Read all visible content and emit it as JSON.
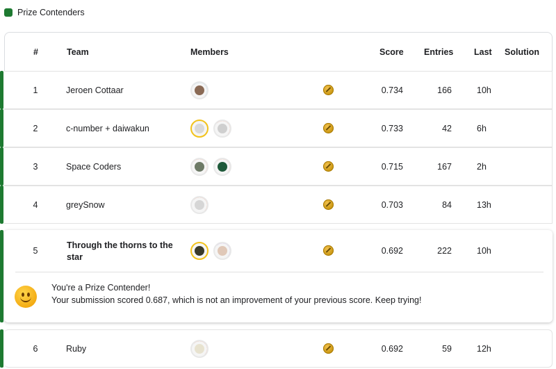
{
  "legend": {
    "label": "Prize Contenders",
    "color": "#1e7a31"
  },
  "headers": {
    "rank": "#",
    "team": "Team",
    "members": "Members",
    "score": "Score",
    "entries": "Entries",
    "last": "Last",
    "solution": "Solution"
  },
  "rows": [
    {
      "rank": "1",
      "team": "Jeroen Cottaar",
      "score": "0.734",
      "entries": "166",
      "last": "10h"
    },
    {
      "rank": "2",
      "team": "c-number + daiwakun",
      "score": "0.733",
      "entries": "42",
      "last": "6h"
    },
    {
      "rank": "3",
      "team": "Space Coders",
      "score": "0.715",
      "entries": "167",
      "last": "2h"
    },
    {
      "rank": "4",
      "team": "greySnow",
      "score": "0.703",
      "entries": "84",
      "last": "13h"
    },
    {
      "rank": "5",
      "team_line1": "Through the thorns to the",
      "team_line2": "star",
      "score": "0.692",
      "entries": "222",
      "last": "10h"
    },
    {
      "rank": "6",
      "team": "Ruby",
      "score": "0.692",
      "entries": "59",
      "last": "12h"
    }
  ],
  "message": {
    "line1": "You're a Prize Contender!",
    "line2": "Your submission scored 0.687, which is not an improvement of your previous score. Keep trying!"
  },
  "colors": {
    "accent_green": "#1e7a31",
    "medal_gold": "#d4a017"
  }
}
